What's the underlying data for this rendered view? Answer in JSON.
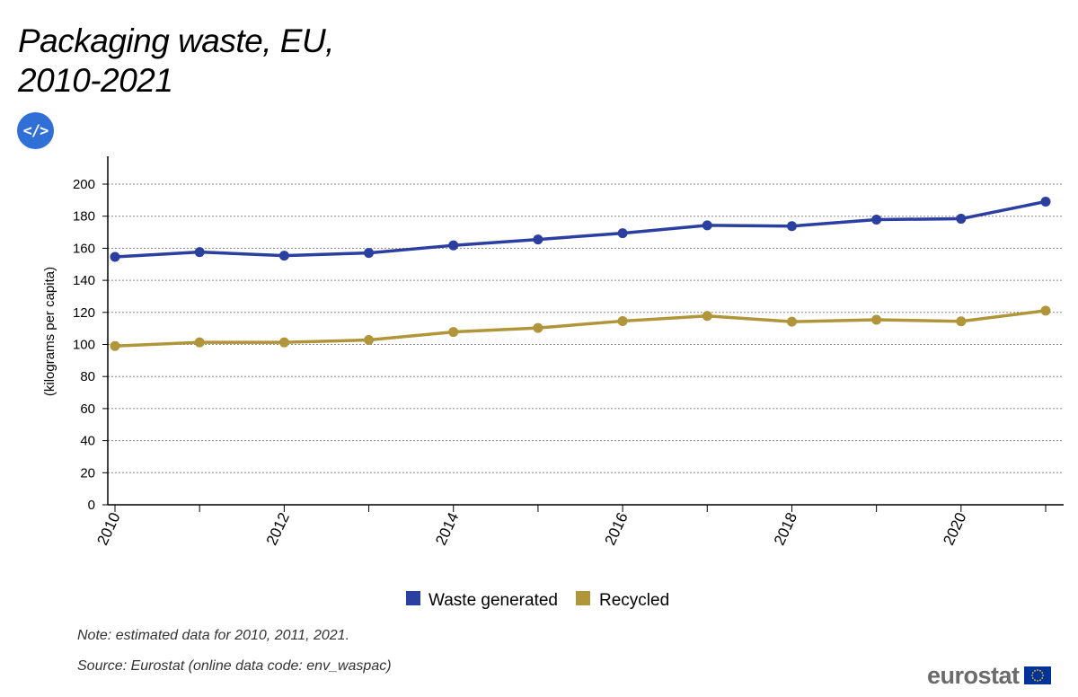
{
  "title": "Packaging waste, EU, 2010-2021",
  "embed_button": {
    "label": "</>",
    "icon": "code-embed-icon"
  },
  "note": "Note: estimated data for 2010, 2011, 2021.",
  "source": "Source: Eurostat (online data code: env_waspac)",
  "brand": {
    "text": "eurostat",
    "flag_icon": "eu-flag-icon",
    "flag_color": "#003399",
    "star_color": "#ffcc00"
  },
  "chart_data": {
    "type": "line",
    "title": "Packaging waste, EU, 2010-2021",
    "xlabel": "",
    "ylabel": "(kilograms per capita)",
    "x": [
      2010,
      2011,
      2012,
      2013,
      2014,
      2015,
      2016,
      2017,
      2018,
      2019,
      2020,
      2021
    ],
    "xlim": [
      2010,
      2021
    ],
    "x_tick_labels": [
      2010,
      2012,
      2014,
      2016,
      2018,
      2020
    ],
    "ylim": [
      0,
      200
    ],
    "y_ticks": [
      0,
      20,
      40,
      60,
      80,
      100,
      120,
      140,
      160,
      180,
      200
    ],
    "grid": "horizontal dotted",
    "legend_position": "bottom-center",
    "series": [
      {
        "name": "Waste generated",
        "color": "#2a3fa0",
        "values": [
          154.6,
          157.6,
          155.4,
          157.1,
          161.8,
          165.5,
          169.4,
          174.3,
          173.8,
          177.9,
          178.4,
          189.1
        ]
      },
      {
        "name": "Recycled",
        "color": "#b0953a",
        "values": [
          99.0,
          101.3,
          101.3,
          102.8,
          107.8,
          110.3,
          114.6,
          117.8,
          114.2,
          115.4,
          114.4,
          121.1
        ]
      }
    ]
  }
}
